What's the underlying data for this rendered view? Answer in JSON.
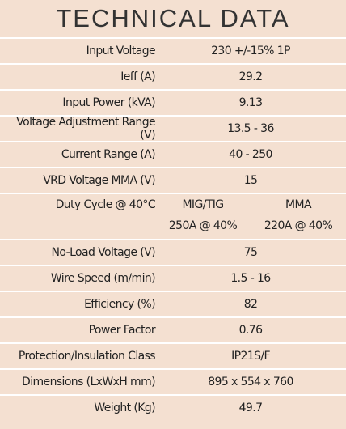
{
  "title": "TECHNICAL DATA",
  "rows": [
    {
      "label": "Input Voltage",
      "value": "230 +/-15% 1P"
    },
    {
      "label": "Ieff (A)",
      "value": "29.2"
    },
    {
      "label": "Input Power (kVA)",
      "value": "9.13"
    },
    {
      "label": "Voltage Adjustment Range (V)",
      "value": "13.5 - 36"
    },
    {
      "label": "Current Range (A)",
      "value": "40 - 250"
    },
    {
      "label": "VRD Voltage MMA (V)",
      "value": "15"
    },
    {
      "label": "Duty Cycle @ 40°C",
      "columns": [
        {
          "header": "MIG/TIG",
          "value": "250A @ 40%"
        },
        {
          "header": "MMA",
          "value": "220A @ 40%"
        }
      ]
    },
    {
      "label": "No-Load Voltage (V)",
      "value": "75"
    },
    {
      "label": "Wire Speed (m/min)",
      "value": "1.5 - 16"
    },
    {
      "label": "Efficiency (%)",
      "value": "82"
    },
    {
      "label": "Power Factor",
      "value": "0.76"
    },
    {
      "label": "Protection/Insulation Class",
      "value": "IP21S/F"
    },
    {
      "label": "Dimensions (LxWxH mm)",
      "value": "895 x 554 x 760"
    },
    {
      "label": "Weight (Kg)",
      "value": "49.7"
    }
  ]
}
